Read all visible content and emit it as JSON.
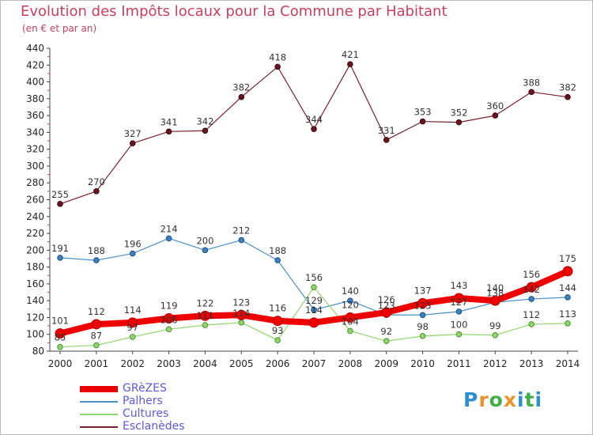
{
  "header": {
    "title": "Evolution des Impôts locaux pour la Commune par Habitant",
    "subtitle": "(en € et par an)"
  },
  "brand": {
    "name": "Proxiti",
    "letters": [
      "P",
      "r",
      "o",
      "x",
      "i",
      "t",
      "i"
    ],
    "colors": [
      "#2e8fd0",
      "#e8942a",
      "#3fae49",
      "#e8942a",
      "#2e8fd0",
      "#3fae49",
      "#2e8fd0"
    ]
  },
  "chart_data": {
    "type": "line",
    "title": "Evolution des Impôts locaux pour la Commune par Habitant",
    "subtitle": "(en € et par an)",
    "x": [
      2000,
      2001,
      2002,
      2003,
      2004,
      2005,
      2006,
      2007,
      2008,
      2009,
      2010,
      2011,
      2012,
      2013,
      2014
    ],
    "ylim": [
      80,
      440
    ],
    "ytick_step": 20,
    "grid": false,
    "legend_position": "bottom-left",
    "series": [
      {
        "name": "Esclanèdes",
        "color": "#7a1f2a",
        "values": [
          255,
          270,
          327,
          341,
          342,
          382,
          418,
          344,
          421,
          331,
          353,
          352,
          360,
          388,
          382
        ]
      },
      {
        "name": "Palhers",
        "color": "#4a90c8",
        "values": [
          191,
          188,
          196,
          214,
          200,
          212,
          188,
          129,
          140,
          123,
          123,
          127,
          138,
          142,
          144
        ]
      },
      {
        "name": "Cultures",
        "color": "#8fd66a",
        "values": [
          85,
          87,
          97,
          106,
          111,
          114,
          93,
          156,
          104,
          92,
          98,
          100,
          99,
          112,
          113
        ]
      },
      {
        "name": "GRèZES",
        "color": "#ee0000",
        "values": [
          101,
          112,
          114,
          119,
          122,
          123,
          116,
          114,
          120,
          126,
          137,
          143,
          140,
          156,
          175
        ]
      }
    ]
  },
  "legend": [
    {
      "name": "GRèZES",
      "color": "#ee0000"
    },
    {
      "name": "Palhers",
      "color": "#4a90c8"
    },
    {
      "name": "Cultures",
      "color": "#8fd66a"
    },
    {
      "name": "Esclanèdes",
      "color": "#7a1f2a"
    }
  ]
}
